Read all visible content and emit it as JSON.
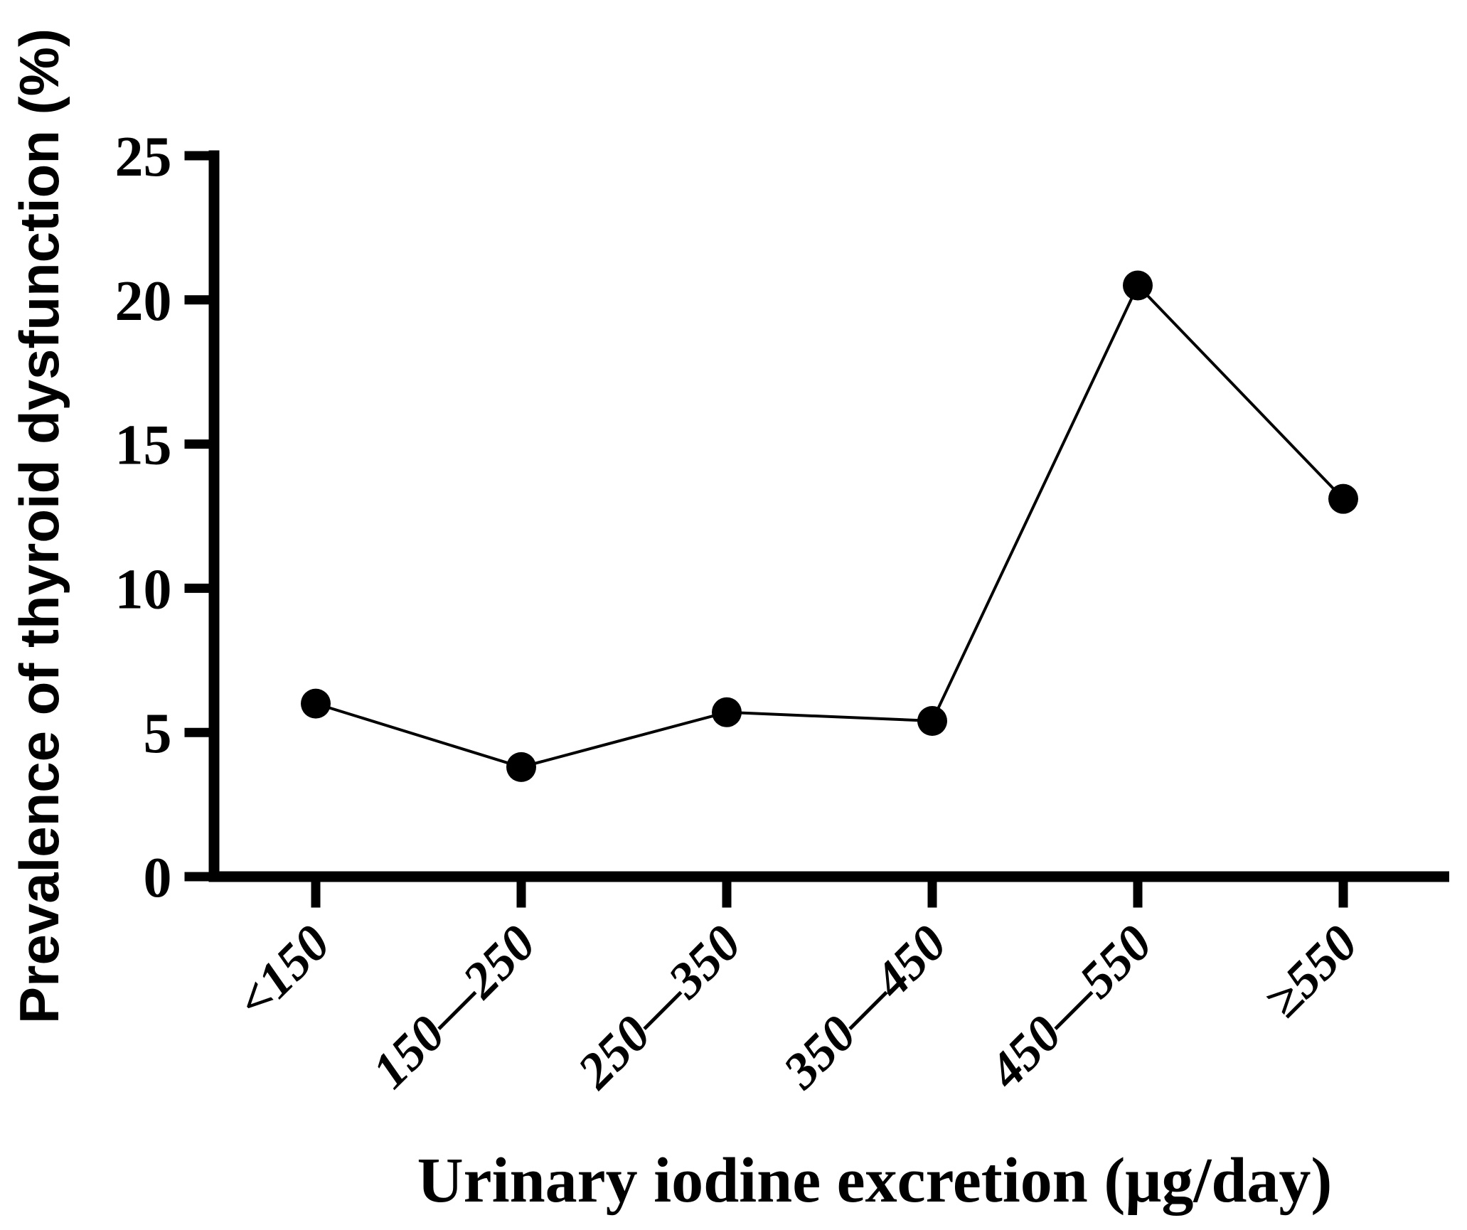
{
  "figure": {
    "background": "#ffffff",
    "ink_color": "#000000"
  },
  "chart_data": {
    "type": "line",
    "title": "",
    "xlabel": "Urinary iodine excretion (μg/day)",
    "ylabel": "Prevalence of thyroid dysfunction (%)",
    "categories": [
      "<150",
      "150—250",
      "250—350",
      "350—450",
      "450—550",
      "≥550"
    ],
    "values": [
      6.0,
      3.8,
      5.7,
      5.4,
      20.5,
      13.1
    ],
    "ylim": [
      0,
      25
    ],
    "yticks": [
      0,
      5,
      10,
      15,
      20,
      25
    ],
    "grid": false,
    "legend": "none",
    "marker": "filled-circle",
    "marker_color": "#000000",
    "line_color": "#000000",
    "tick_label_rotation_deg": 45
  }
}
